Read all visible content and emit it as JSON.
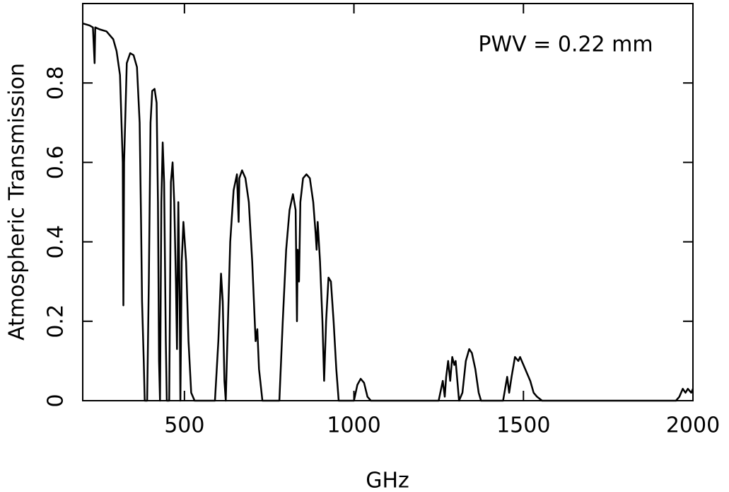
{
  "chart_data": {
    "type": "line",
    "annotation": "PWV = 0.22 mm",
    "xlabel": "GHz",
    "ylabel": "Atmospheric Transmission",
    "xlim": [
      200,
      2000
    ],
    "ylim": [
      0,
      1
    ],
    "xticks": [
      500,
      1000,
      1500,
      2000
    ],
    "yticks": [
      0,
      0.2,
      0.4,
      0.6,
      0.8
    ],
    "color": "#000000",
    "x": [
      200,
      220,
      230,
      235,
      237,
      250,
      270,
      290,
      300,
      310,
      318,
      320,
      322,
      330,
      340,
      350,
      360,
      368,
      372,
      375,
      380,
      383,
      390,
      395,
      400,
      405,
      412,
      418,
      422,
      425,
      428,
      432,
      436,
      440,
      445,
      448,
      455,
      460,
      465,
      470,
      475,
      478,
      482,
      486,
      488,
      492,
      497,
      505,
      512,
      520,
      530,
      590,
      600,
      608,
      613,
      618,
      622,
      625,
      635,
      645,
      655,
      660,
      662,
      670,
      680,
      690,
      700,
      710,
      715,
      720,
      730,
      780,
      790,
      800,
      810,
      820,
      828,
      832,
      834,
      838,
      842,
      850,
      860,
      870,
      880,
      887,
      890,
      893,
      900,
      907,
      912,
      918,
      925,
      932,
      940,
      948,
      955,
      1000,
      1010,
      1020,
      1030,
      1040,
      1050,
      1250,
      1262,
      1268,
      1272,
      1278,
      1284,
      1290,
      1296,
      1300,
      1306,
      1310,
      1320,
      1330,
      1340,
      1348,
      1358,
      1368,
      1375,
      1440,
      1452,
      1458,
      1465,
      1475,
      1485,
      1490,
      1500,
      1510,
      1520,
      1530,
      1540,
      1555,
      1950,
      1960,
      1970,
      1978,
      1985,
      1995,
      2000
    ],
    "values": [
      0.95,
      0.945,
      0.94,
      0.85,
      0.94,
      0.935,
      0.93,
      0.91,
      0.88,
      0.82,
      0.6,
      0.24,
      0.6,
      0.85,
      0.875,
      0.87,
      0.84,
      0.7,
      0.45,
      0.25,
      0.1,
      0,
      0,
      0.3,
      0.7,
      0.78,
      0.785,
      0.75,
      0.5,
      0.1,
      0,
      0.5,
      0.65,
      0.55,
      0.15,
      0,
      0,
      0.55,
      0.6,
      0.5,
      0.3,
      0.13,
      0.5,
      0.25,
      0,
      0.35,
      0.45,
      0.35,
      0.15,
      0.02,
      0,
      0,
      0.15,
      0.32,
      0.25,
      0.05,
      0,
      0.1,
      0.4,
      0.53,
      0.57,
      0.45,
      0.56,
      0.58,
      0.56,
      0.5,
      0.35,
      0.15,
      0.18,
      0.08,
      0,
      0,
      0.2,
      0.38,
      0.48,
      0.52,
      0.48,
      0.2,
      0.38,
      0.3,
      0.5,
      0.56,
      0.57,
      0.56,
      0.5,
      0.42,
      0.38,
      0.45,
      0.35,
      0.2,
      0.05,
      0.2,
      0.31,
      0.3,
      0.2,
      0.08,
      0,
      0,
      0.04,
      0.055,
      0.045,
      0.01,
      0,
      0,
      0.05,
      0.01,
      0.06,
      0.1,
      0.05,
      0.11,
      0.09,
      0.1,
      0.04,
      0,
      0.02,
      0.1,
      0.13,
      0.12,
      0.08,
      0.02,
      0,
      0,
      0.06,
      0.02,
      0.06,
      0.11,
      0.1,
      0.11,
      0.09,
      0.07,
      0.05,
      0.02,
      0.01,
      0,
      0,
      0.01,
      0.03,
      0.02,
      0.03,
      0.02,
      0.03
    ]
  }
}
